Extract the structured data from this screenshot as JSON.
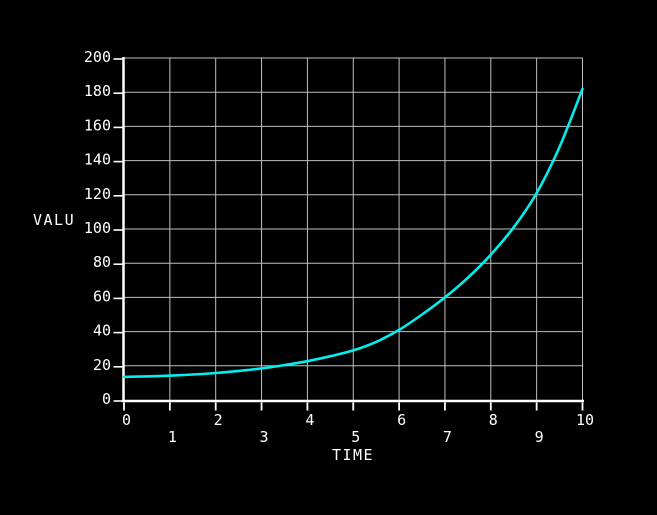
{
  "chart_data": {
    "type": "line",
    "xlabel": "TIME",
    "ylabel": "VALU",
    "x_range": [
      0,
      10
    ],
    "y_range": [
      0,
      200
    ],
    "x_ticks": [
      0,
      1,
      2,
      3,
      4,
      5,
      6,
      7,
      8,
      9,
      10
    ],
    "y_ticks": [
      0,
      20,
      40,
      60,
      80,
      100,
      120,
      140,
      160,
      180,
      200
    ],
    "x_label_stagger": true,
    "grid": true,
    "legend_position": "none",
    "colors": {
      "background": "#000000",
      "axis": "#ffffff",
      "grid": "#bfbfbf",
      "text": "#ffffff",
      "curve": "#00efef"
    },
    "series": [
      {
        "name": "VALU",
        "x": [
          0,
          0.5,
          1,
          1.5,
          2,
          2.5,
          3,
          3.5,
          4,
          4.5,
          5,
          5.5,
          6,
          6.5,
          7,
          7.5,
          8,
          8.5,
          9,
          9.5,
          10
        ],
        "y": [
          13.5,
          13.8,
          14.2,
          14.9,
          15.8,
          17,
          18.5,
          20.4,
          22.7,
          25.6,
          29,
          34,
          41,
          50,
          60,
          71.5,
          85,
          101,
          121,
          148,
          182
        ]
      }
    ]
  }
}
